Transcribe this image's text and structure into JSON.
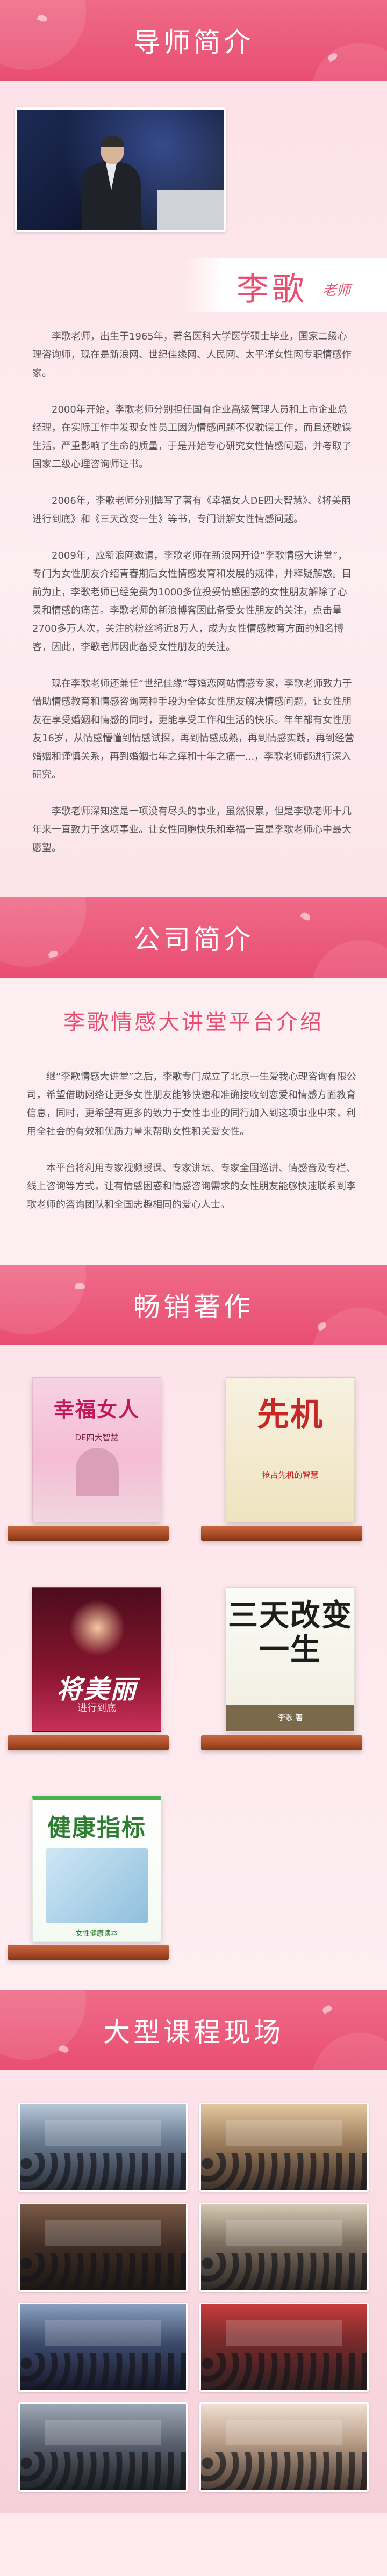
{
  "sections": {
    "mentor_header": "导师简介",
    "company_header": "公司简介",
    "books_header": "畅销著作",
    "courses_header": "大型课程现场"
  },
  "mentor": {
    "name": "李歌",
    "role": "老师",
    "paragraphs": [
      "李歌老师，出生于1965年，著名医科大学医学硕士毕业，国家二级心理咨询师，现在是新浪网、世纪佳缘网、人民网、太平洋女性网专职情感作家。",
      "2000年开始，李歌老师分别担任国有企业高级管理人员和上市企业总经理，在实际工作中发现女性员工因为情感问题不仅耽误工作，而且还耽误生活，严重影响了生命的质量，于是开始专心研究女性情感问题，并考取了国家二级心理咨询师证书。",
      "2006年，李歌老师分别撰写了著有《幸福女人DE四大智慧》、《将美丽进行到底》和《三天改变一生》等书，专门讲解女性情感问题。",
      "2009年，应新浪网邀请，李歌老师在新浪网开设“李歌情感大讲堂”，专门为女性朋友介绍青春期后女性情感发育和发展的规律，并释疑解惑。目前为止，李歌老师已经免费为1000多位投妥情感困惑的女性朋友解除了心灵和情感的痛苦。李歌老师的新浪博客因此备受女性朋友的关注，点击量2700多万人次，关注的粉丝将近8万人，成为女性情感教育方面的知名博客，因此，李歌老师因此备受女性朋友的关注。",
      "现在李歌老师还兼任“世纪佳缘”等婚恋网站情感专家，李歌老师致力于借助情感教育和情感咨询两种手段为全体女性朋友解决情感问题，让女性朋友在享受婚姻和情感的同时，更能享受工作和生活的快乐。年年都有女性朋友16岁，从情感懵懂到情感试探，再到情感成熟，再到情感实践，再到经营婚姻和谨慎关系，再到婚姻七年之痒和十年之痛一...，李歌老师都进行深入研究。",
      "李歌老师深知这是一项没有尽头的事业，虽然很累，但是李歌老师十几年来一直致力于这项事业。让女性同胞快乐和幸福一直是李歌老师心中最大愿望。"
    ]
  },
  "company": {
    "title": "李歌情感大讲堂平台介绍",
    "paragraphs": [
      "继“李歌情感大讲堂”之后，李歌专门成立了北京一生爱我心理咨询有限公司，希望借助网络让更多女性朋友能够快速和准确接收到恋爱和情感方面教育信息，同时，更希望有更多的致力于女性事业的同行加入到这项事业中来，利用全社会的有效和优质力量来帮助女性和关爱女性。",
      "本平台将利用专家视频授课、专家讲坛、专家全国巡讲、情感音及专栏、线上咨询等方式，让有情感困惑和情感咨询需求的女性朋友能够快速联系到李歌老师的咨询团队和全国志趣相同的爱心人士。"
    ]
  },
  "books": [
    {
      "title": "幸福女人",
      "subtitle": "DE四大智慧"
    },
    {
      "title": "先机",
      "subtitle": "抢占先机的智慧"
    },
    {
      "title": "将美丽",
      "subtitle": "进行到底"
    },
    {
      "title": "三天改变一生",
      "subtitle": "李歌 著"
    },
    {
      "title": "健康指标",
      "subtitle": "女性健康读本"
    }
  ],
  "courses": [
    "课程现场1",
    "课程现场2",
    "课程现场3",
    "课程现场4",
    "课程现场5",
    "课程现场6",
    "课程现场7",
    "课程现场8"
  ],
  "colors": {
    "accent": "#e94e72",
    "background": "#fde9ee",
    "shelf": "#a84b27"
  }
}
